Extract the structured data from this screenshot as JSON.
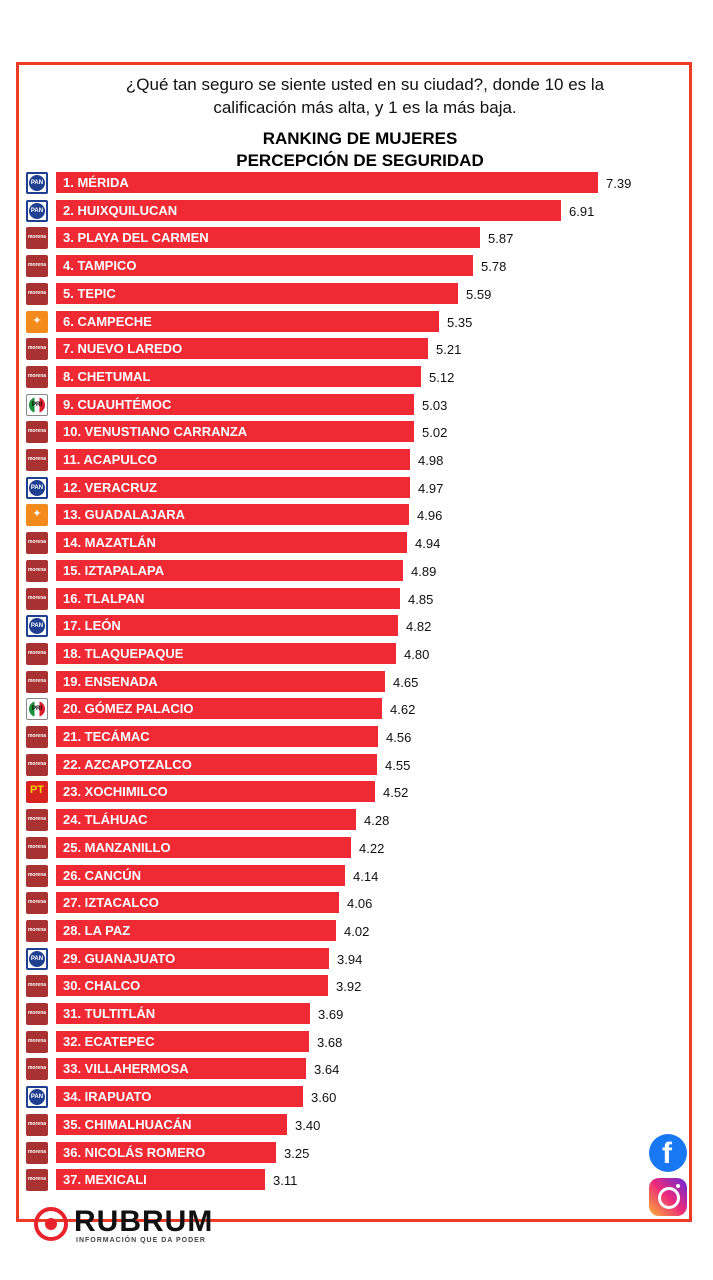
{
  "header": {
    "question_line1": "¿Qué tan seguro se siente usted en su ciudad?, donde 10 es la",
    "question_line2": "calificación más alta, y  1 es la más baja."
  },
  "chart_data": {
    "type": "bar",
    "orientation": "horizontal",
    "title_line1": "RANKING DE MUJERES",
    "title_line2": "PERCEPCIÓN DE SEGURIDAD",
    "bar_color": "#f02a35",
    "categories": [
      "1. MÉRIDA",
      "2. HUIXQUILUCAN",
      "3. PLAYA DEL CARMEN",
      "4. TAMPICO",
      "5. TEPIC",
      "6. CAMPECHE",
      "7. NUEVO LAREDO",
      "8. CHETUMAL",
      "9. CUAUHTÉMOC",
      "10. VENUSTIANO CARRANZA",
      "11. ACAPULCO",
      "12. VERACRUZ",
      "13. GUADALAJARA",
      "14. MAZATLÁN",
      "15. IZTAPALAPA",
      "16. TLALPAN",
      "17. LEÓN",
      "18. TLAQUEPAQUE",
      "19. ENSENADA",
      "20. GÓMEZ PALACIO",
      "21. TECÁMAC",
      "22. AZCAPOTZALCO",
      "23. XOCHIMILCO",
      "24. TLÁHUAC",
      "25. MANZANILLO",
      "26. CANCÚN",
      "27. IZTACALCO",
      "28. LA PAZ",
      "29. GUANAJUATO",
      "30. CHALCO",
      "31. TULTITLÁN",
      "32. ECATEPEC",
      "33. VILLAHERMOSA",
      "34. IRAPUATO",
      "35. CHIMALHUACÁN",
      "36. NICOLÁS ROMERO",
      "37. MEXICALI"
    ],
    "values": [
      7.39,
      6.91,
      5.87,
      5.78,
      5.59,
      5.35,
      5.21,
      5.12,
      5.03,
      5.02,
      4.98,
      4.97,
      4.96,
      4.94,
      4.89,
      4.85,
      4.82,
      4.8,
      4.65,
      4.62,
      4.56,
      4.55,
      4.52,
      4.28,
      4.22,
      4.14,
      4.06,
      4.02,
      3.94,
      3.92,
      3.69,
      3.68,
      3.64,
      3.6,
      3.4,
      3.25,
      3.11
    ],
    "value_labels": [
      "7.39",
      "6.91",
      "5.87",
      "5.78",
      "5.59",
      "5.35",
      "5.21",
      "5.12",
      "5.03",
      "5.02",
      "4.98",
      "4.97",
      "4.96",
      "4.94",
      "4.89",
      "4.85",
      "4.82",
      "4.80",
      "4.65",
      "4.62",
      "4.56",
      "4.55",
      "4.52",
      "4.28",
      "4.22",
      "4.14",
      "4.06",
      "4.02",
      "3.94",
      "3.92",
      "3.69",
      "3.68",
      "3.64",
      "3.60",
      "3.40",
      "3.25",
      "3.11"
    ],
    "party_icons": [
      "pan-icon",
      "pan-icon",
      "morena-icon",
      "morena-icon",
      "morena-icon",
      "mc-icon",
      "morena-icon",
      "morena-icon",
      "pri-icon",
      "morena-icon",
      "morena-icon",
      "pan-icon",
      "mc-icon",
      "morena-icon",
      "morena-icon",
      "morena-icon",
      "pan-icon",
      "morena-icon",
      "morena-icon",
      "pri-icon",
      "morena-icon",
      "morena-icon",
      "pt-icon",
      "morena-icon",
      "morena-icon",
      "morena-icon",
      "morena-icon",
      "morena-icon",
      "pan-icon",
      "morena-icon",
      "morena-icon",
      "morena-icon",
      "morena-icon",
      "pan-icon",
      "morena-icon",
      "morena-icon",
      "morena-icon"
    ],
    "party_text": {
      "pan-icon": "PAN",
      "morena-icon": "morena",
      "mc-icon": "✦",
      "pri-icon": "PRI",
      "pt-icon": "PT"
    }
  },
  "brand": {
    "name": "RUBRUM",
    "tagline": "INFORMACIÓN QUE DA PODER",
    "accent": "#e8232b"
  },
  "social": {
    "facebook_glyph": "f"
  }
}
